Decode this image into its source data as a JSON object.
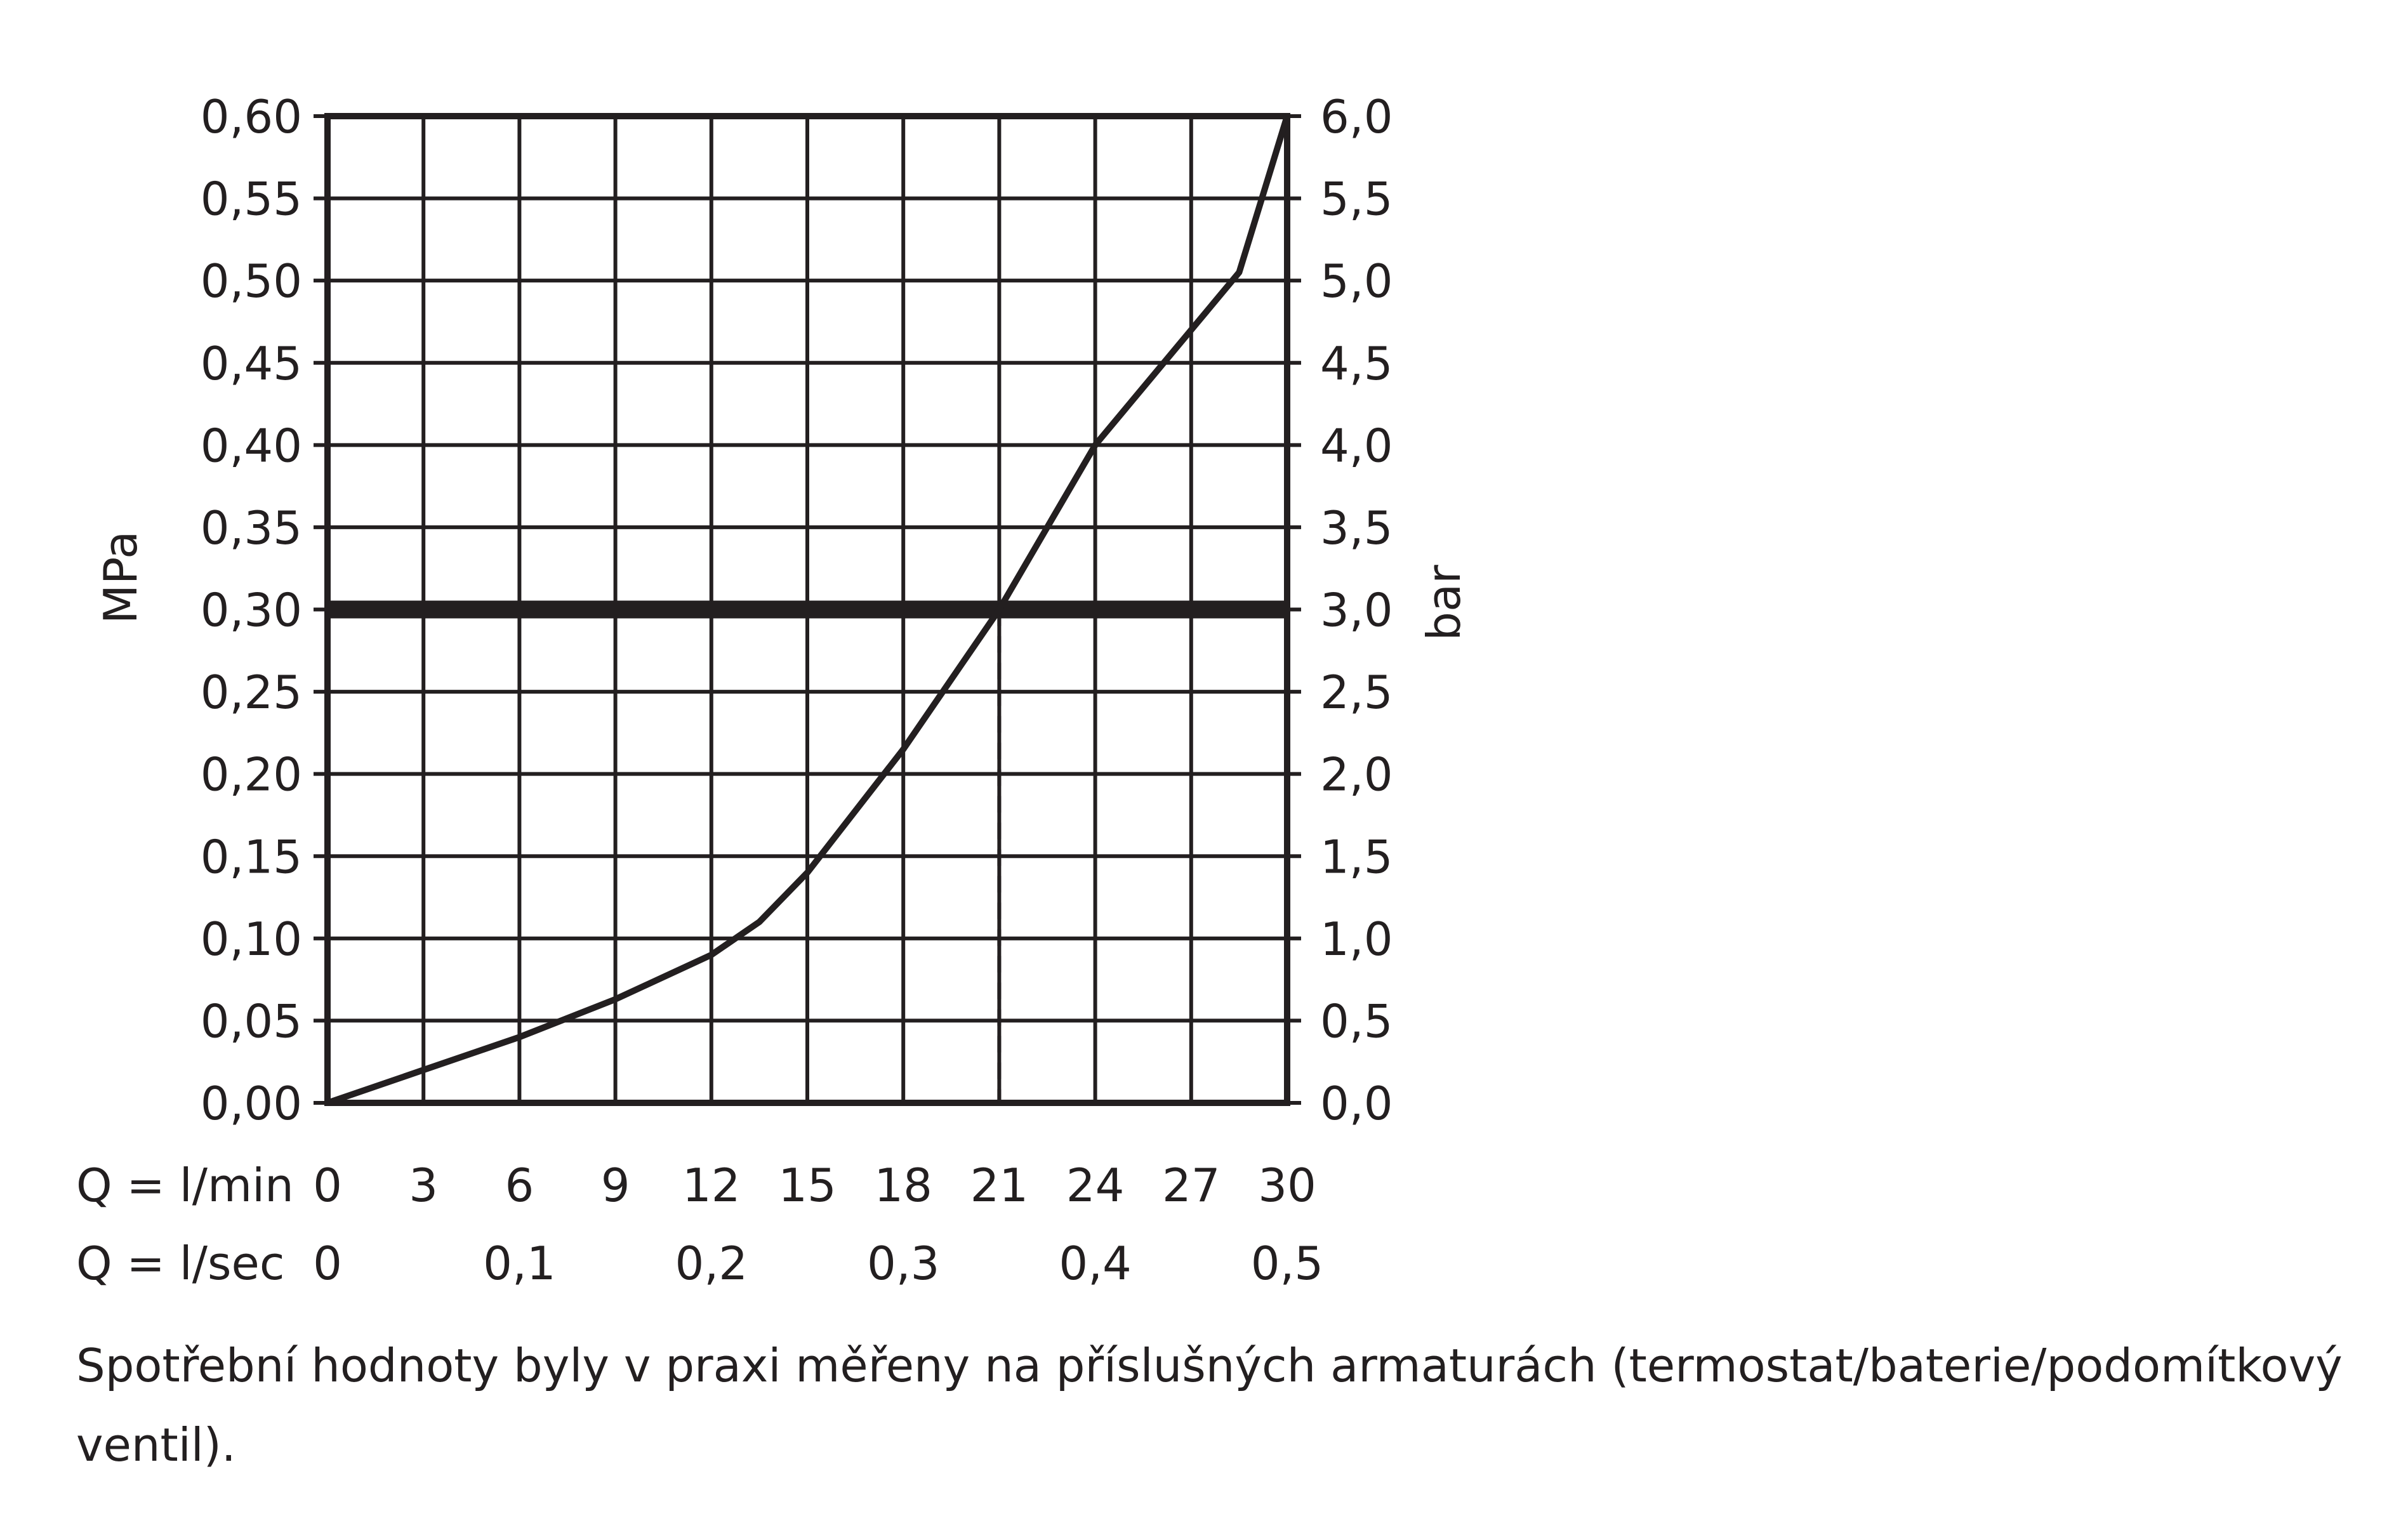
{
  "chart_data": {
    "type": "line",
    "ylabel": "MPa",
    "ylabel_right": "bar",
    "ylim": [
      0,
      0.6
    ],
    "xlim": [
      0,
      30
    ],
    "y_ticks": [
      "0,00",
      "0,05",
      "0,10",
      "0,15",
      "0,20",
      "0,25",
      "0,30",
      "0,35",
      "0,40",
      "0,45",
      "0,50",
      "0,55",
      "0,60"
    ],
    "y_ticks_right": [
      "0,0",
      "0,5",
      "1,0",
      "1,5",
      "2,0",
      "2,5",
      "3,0",
      "3,5",
      "4,0",
      "4,5",
      "5,0",
      "5,5",
      "6,0"
    ],
    "x_axis_lmin": {
      "label": "Q = l/min",
      "ticks": [
        {
          "value": 0,
          "text": "0"
        },
        {
          "value": 3,
          "text": "3"
        },
        {
          "value": 6,
          "text": "6"
        },
        {
          "value": 9,
          "text": "9"
        },
        {
          "value": 12,
          "text": "12"
        },
        {
          "value": 15,
          "text": "15"
        },
        {
          "value": 18,
          "text": "18"
        },
        {
          "value": 21,
          "text": "21"
        },
        {
          "value": 24,
          "text": "24"
        },
        {
          "value": 27,
          "text": "27"
        },
        {
          "value": 30,
          "text": "30"
        }
      ]
    },
    "x_axis_lsec": {
      "label": "Q = l/sec",
      "ticks": [
        {
          "value": 0,
          "text": "0"
        },
        {
          "value": 0.1,
          "text": "0,1"
        },
        {
          "value": 0.2,
          "text": "0,2"
        },
        {
          "value": 0.3,
          "text": "0,3"
        },
        {
          "value": 0.4,
          "text": "0,4"
        },
        {
          "value": 0.5,
          "text": "0,5"
        }
      ]
    },
    "series": [
      {
        "x": [
          0,
          3,
          6,
          9,
          12,
          13.5,
          15,
          18,
          21,
          24,
          27,
          28.5,
          30
        ],
        "y": [
          0,
          0.02,
          0.04,
          0.063,
          0.09,
          0.11,
          0.14,
          0.215,
          0.3,
          0.4,
          0.47,
          0.505,
          0.6
        ]
      }
    ],
    "reference_line": {
      "y": 0.3
    },
    "reference_drop": {
      "x": 21,
      "y": 0.3
    },
    "grid": true,
    "color": "#231f20"
  },
  "caption": "Spotřební hodnoty byly v praxi měřeny na příslušných armaturách (termostat/baterie/podomítkový ventil)."
}
